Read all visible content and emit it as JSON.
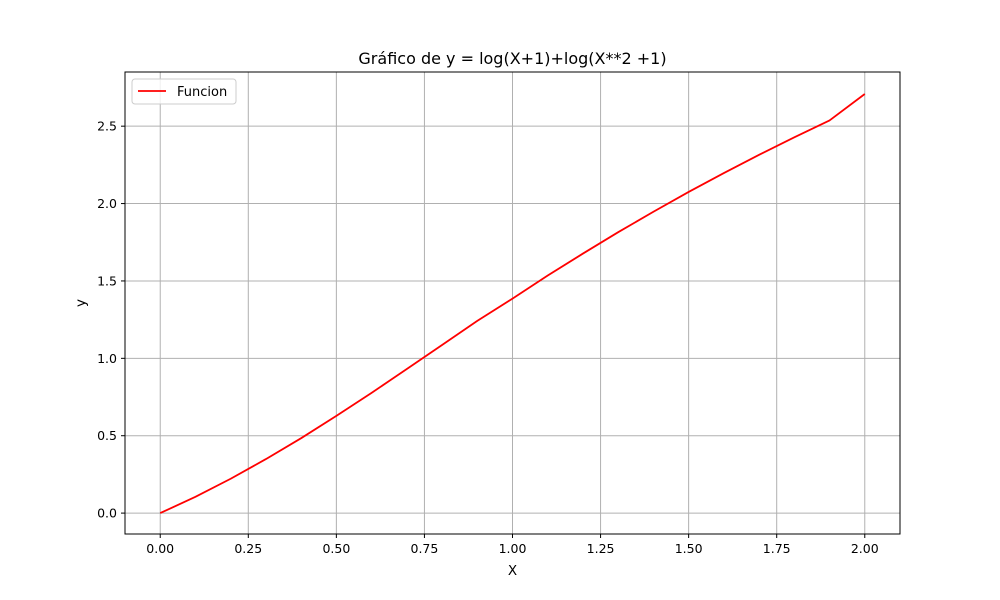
{
  "chart_data": {
    "type": "line",
    "title": "Gráfico de y = log(X+1)+log(X**2 +1)",
    "xlabel": "X",
    "ylabel": "y",
    "xlim": [
      -0.1,
      2.1
    ],
    "ylim": [
      -0.135,
      2.85
    ],
    "xticks": [
      0.0,
      0.25,
      0.5,
      0.75,
      1.0,
      1.25,
      1.5,
      1.75,
      2.0
    ],
    "xtick_labels": [
      "0.00",
      "0.25",
      "0.50",
      "0.75",
      "1.00",
      "1.25",
      "1.50",
      "1.75",
      "2.00"
    ],
    "yticks": [
      0.0,
      0.5,
      1.0,
      1.5,
      2.0,
      2.5
    ],
    "ytick_labels": [
      "0.0",
      "0.5",
      "1.0",
      "1.5",
      "2.0",
      "2.5"
    ],
    "grid": true,
    "legend_position": "top-left",
    "series": [
      {
        "name": "Funcion",
        "color": "#ff0000",
        "x": [
          0.0,
          0.1,
          0.2,
          0.3,
          0.4,
          0.5,
          0.6,
          0.7,
          0.8,
          0.9,
          1.0,
          1.1,
          1.2,
          1.3,
          1.4,
          1.5,
          1.6,
          1.7,
          1.8,
          1.9,
          2.0
        ],
        "y": [
          0.0,
          0.105,
          0.222,
          0.349,
          0.484,
          0.628,
          0.777,
          0.931,
          1.086,
          1.242,
          1.386,
          1.535,
          1.677,
          1.815,
          1.947,
          2.075,
          2.197,
          2.315,
          2.428,
          2.537,
          2.708
        ]
      }
    ]
  }
}
